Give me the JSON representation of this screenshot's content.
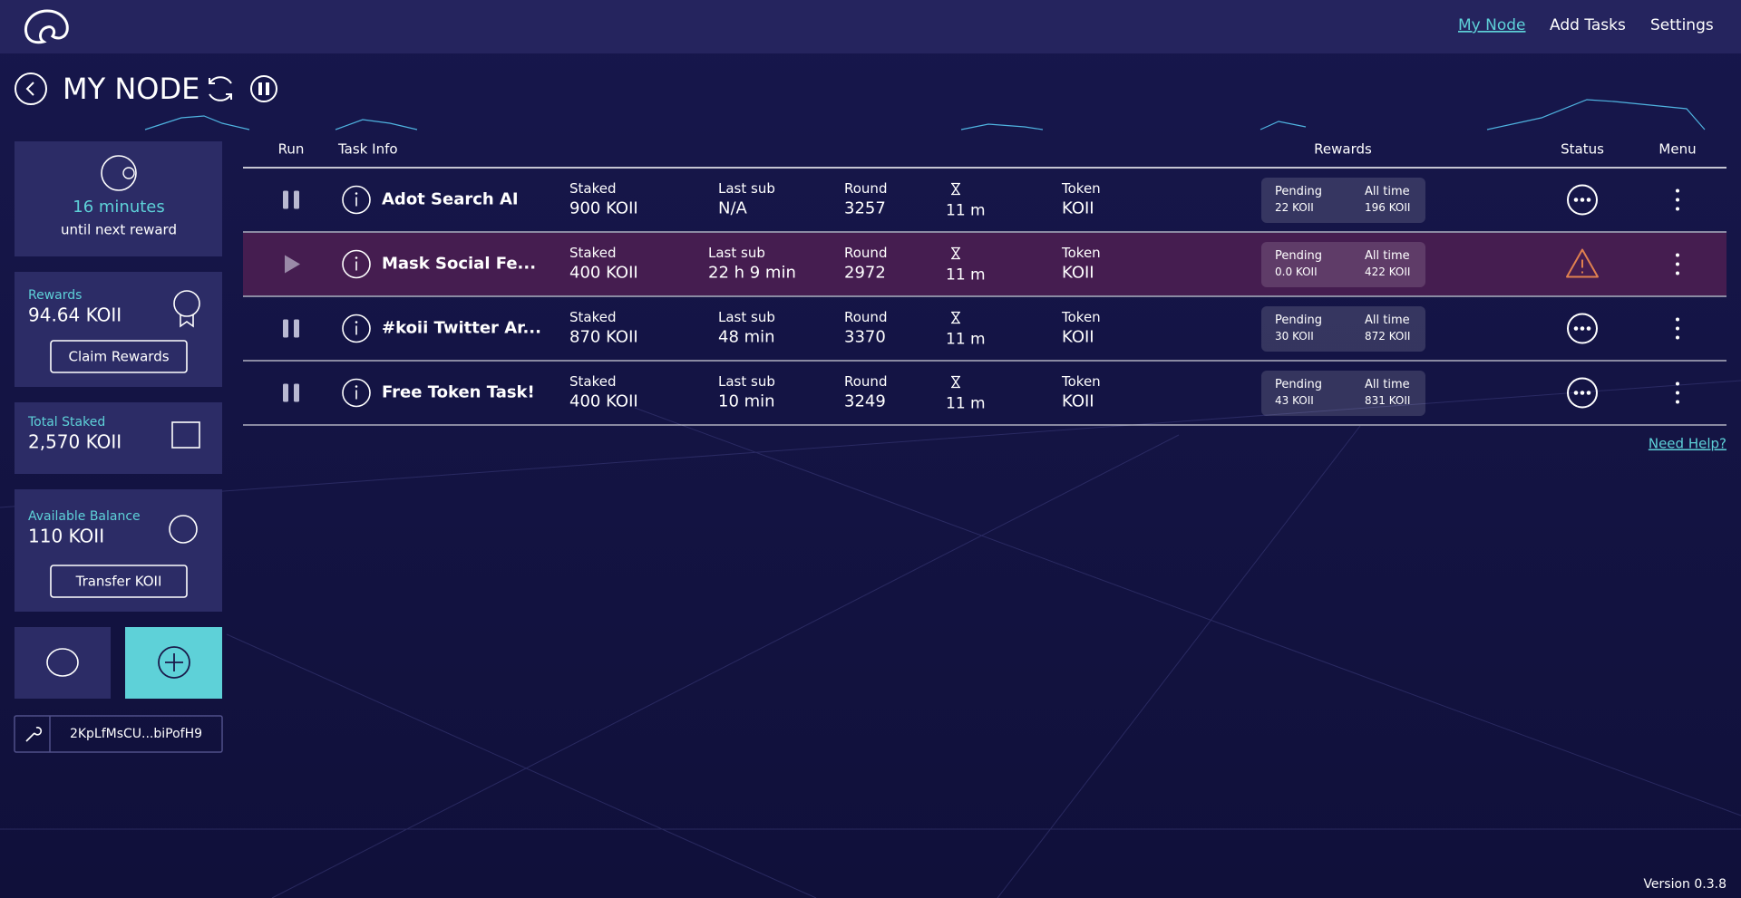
{
  "header": {
    "nav": [
      "My Node",
      "Add Tasks",
      "Settings"
    ]
  },
  "page_title": "MY NODE",
  "sidebar": {
    "timer_value": "16 minutes",
    "timer_caption": "until next reward",
    "rewards_label": "Rewards",
    "rewards_value": "94.64 KOII",
    "claim_button": "Claim Rewards",
    "staked_label": "Total Staked",
    "staked_value": "2,570 KOII",
    "balance_label": "Available Balance",
    "balance_value": "110 KOII",
    "transfer_button": "Transfer KOII",
    "address": "2KpLfMsCU...biPofH9"
  },
  "table": {
    "columns": [
      "Run",
      "Task Info",
      "Rewards",
      "Status",
      "Menu"
    ],
    "field_labels": {
      "staked": "Staked",
      "last_sub": "Last sub",
      "round": "Round",
      "token": "Token",
      "pending": "Pending",
      "all_time": "All time"
    },
    "rows": [
      {
        "name": "Adot Search AI",
        "running": true,
        "staked": "900 KOII",
        "last_sub": "N/A",
        "round": "3257",
        "timer": "11 m",
        "token": "KOII",
        "pending": "22 KOII",
        "all_time": "196 KOII"
      },
      {
        "name": "Mask Social Fe...",
        "running": false,
        "staked": "400 KOII",
        "last_sub": "22 h 9 min",
        "round": "2972",
        "timer": "11 m",
        "token": "KOII",
        "pending": "0.0 KOII",
        "all_time": "422 KOII"
      },
      {
        "name": "#koii Twitter Ar...",
        "running": true,
        "staked": "870 KOII",
        "last_sub": "48 min",
        "round": "3370",
        "timer": "11 m",
        "token": "KOII",
        "pending": "30 KOII",
        "all_time": "872 KOII"
      },
      {
        "name": "Free Token Task!",
        "running": true,
        "staked": "400 KOII",
        "last_sub": "10 min",
        "round": "3249",
        "timer": "11 m",
        "token": "KOII",
        "pending": "43 KOII",
        "all_time": "831 KOII"
      }
    ]
  },
  "help_link": "Need Help?",
  "version": "Version 0.3.8"
}
